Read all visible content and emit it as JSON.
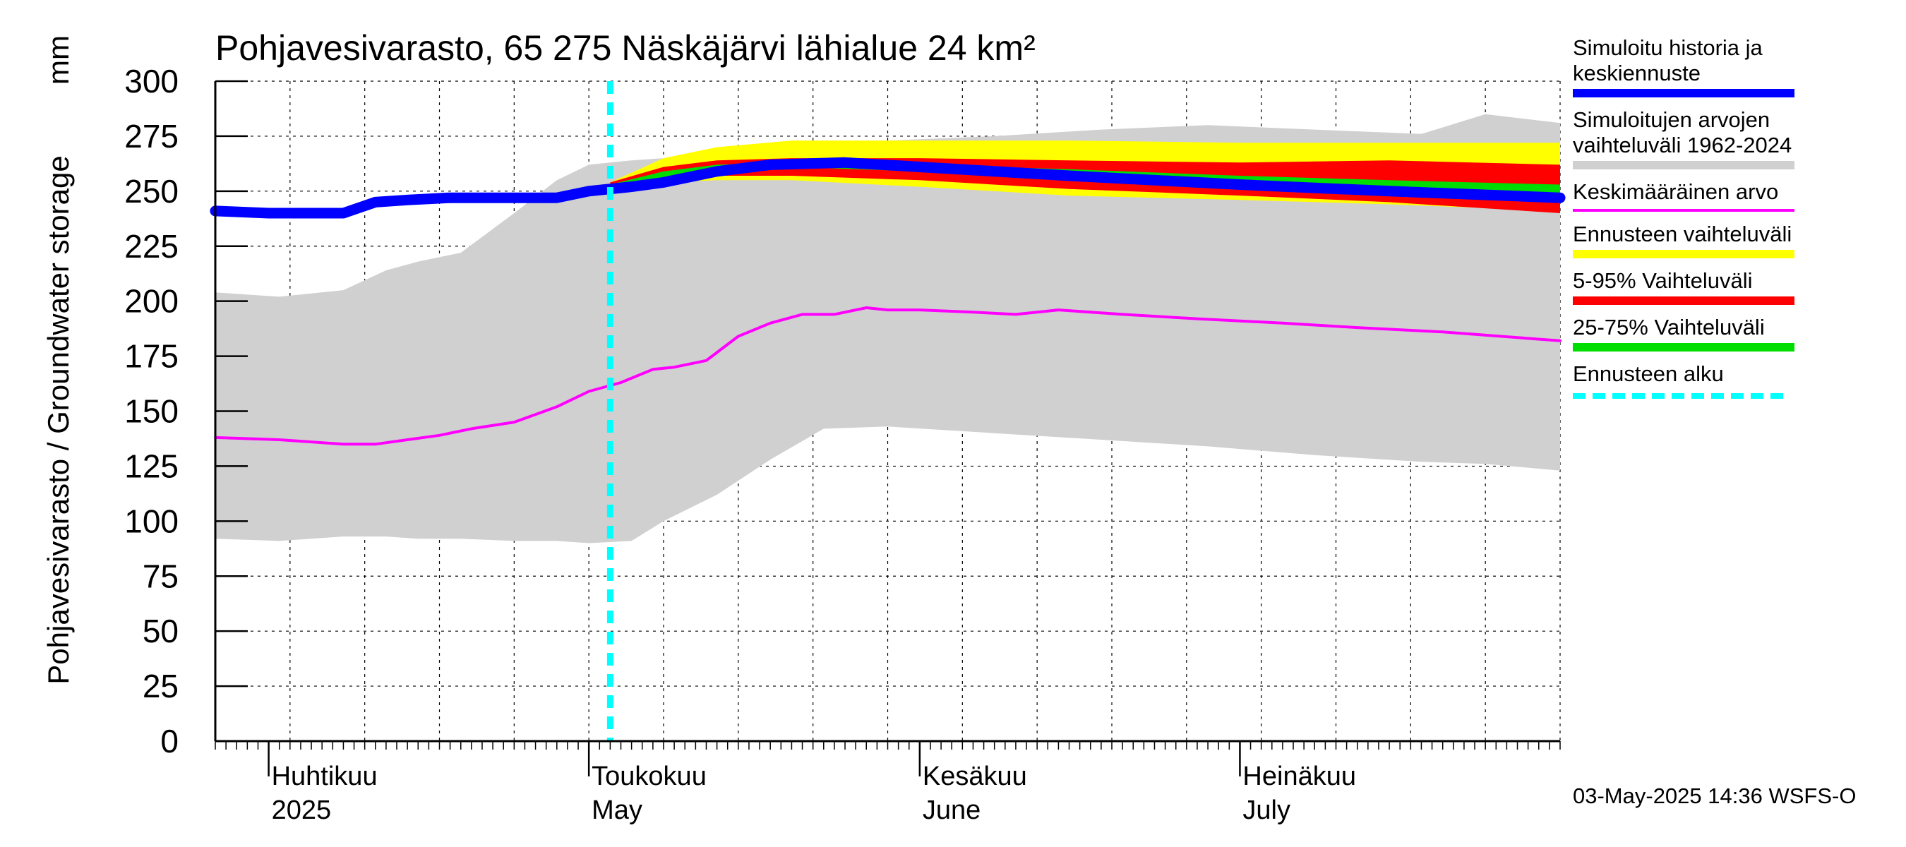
{
  "chart_data": {
    "type": "area",
    "title": "Pohjavesivarasto, 65 275 Näskäjärvi lähialue 24 km²",
    "ylabel": "Pohjavesivarasto / Groundwater storage",
    "yunit": "mm",
    "ylim": [
      0,
      300
    ],
    "yticks": [
      0,
      25,
      50,
      75,
      100,
      125,
      150,
      175,
      200,
      225,
      250,
      275,
      300
    ],
    "xlim": [
      "2025-03-27",
      "2025-07-31"
    ],
    "month_labels": [
      {
        "date": "2025-04-01",
        "line1": "Huhtikuu",
        "line2": "2025"
      },
      {
        "date": "2025-05-01",
        "line1": "Toukokuu",
        "line2": "May"
      },
      {
        "date": "2025-06-01",
        "line1": "Kesäkuu",
        "line2": "June"
      },
      {
        "date": "2025-07-01",
        "line1": "Heinäkuu",
        "line2": "July"
      }
    ],
    "grid": true,
    "legend_position": "right",
    "forecast_start": "2025-05-03",
    "series": [
      {
        "key": "range",
        "name": "Simuloitujen arvojen\nvaihteluväli 1962-2024",
        "color": "#d0d0d0",
        "kind": "band",
        "dates": [
          "2025-03-27",
          "2025-04-02",
          "2025-04-08",
          "2025-04-12",
          "2025-04-15",
          "2025-04-19",
          "2025-04-24",
          "2025-04-28",
          "2025-05-01",
          "2025-05-05",
          "2025-05-08",
          "2025-05-13",
          "2025-05-18",
          "2025-05-23",
          "2025-05-29",
          "2025-06-08",
          "2025-06-18",
          "2025-06-28",
          "2025-07-08",
          "2025-07-18",
          "2025-07-24",
          "2025-07-31"
        ],
        "low": [
          92,
          91,
          93,
          93,
          92,
          92,
          91,
          91,
          90,
          91,
          100,
          112,
          128,
          142,
          143,
          140,
          137,
          134,
          130,
          127,
          126,
          123
        ],
        "high": [
          204,
          202,
          205,
          214,
          218,
          222,
          240,
          255,
          262,
          264,
          265,
          268,
          270,
          272,
          273,
          275,
          278,
          280,
          278,
          276,
          285,
          281
        ]
      },
      {
        "key": "forecast",
        "name": "Ennusteen vaihteluväli",
        "color": "#ffff00",
        "kind": "band",
        "dates": [
          "2025-05-03",
          "2025-05-08",
          "2025-05-13",
          "2025-05-20",
          "2025-06-01",
          "2025-06-15",
          "2025-07-01",
          "2025-07-15",
          "2025-07-31"
        ],
        "low": [
          252,
          254,
          255,
          255,
          252,
          248,
          246,
          244,
          241
        ],
        "high": [
          254,
          265,
          270,
          273,
          273,
          273,
          272,
          272,
          272
        ]
      },
      {
        "key": "p5_95",
        "name": "5-95% Vaihteluväli",
        "color": "#ff0000",
        "kind": "band",
        "dates": [
          "2025-05-03",
          "2025-05-08",
          "2025-05-13",
          "2025-05-20",
          "2025-06-01",
          "2025-06-15",
          "2025-07-01",
          "2025-07-15",
          "2025-07-31"
        ],
        "low": [
          252,
          254,
          257,
          257,
          255,
          251,
          248,
          245,
          240
        ],
        "high": [
          254,
          261,
          264,
          265,
          265,
          264,
          263,
          264,
          262
        ]
      },
      {
        "key": "p25_75",
        "name": "25-75% Vaihteluväli",
        "color": "#00dd00",
        "kind": "band",
        "dates": [
          "2025-05-03",
          "2025-05-08",
          "2025-05-13",
          "2025-05-20",
          "2025-06-01",
          "2025-06-15",
          "2025-07-01",
          "2025-07-15",
          "2025-07-31"
        ],
        "low": [
          252,
          256,
          260,
          261,
          259,
          255,
          252,
          250,
          248
        ],
        "high": [
          253,
          259,
          262,
          263,
          262,
          260,
          257,
          255,
          253
        ]
      },
      {
        "key": "mean",
        "name": "Keskimääräinen arvo",
        "color": "#ff00ff",
        "kind": "line",
        "width": 4,
        "dates": [
          "2025-03-27",
          "2025-04-02",
          "2025-04-08",
          "2025-04-11",
          "2025-04-14",
          "2025-04-17",
          "2025-04-20",
          "2025-04-24",
          "2025-04-28",
          "2025-05-01",
          "2025-05-04",
          "2025-05-07",
          "2025-05-09",
          "2025-05-12",
          "2025-05-15",
          "2025-05-18",
          "2025-05-21",
          "2025-05-24",
          "2025-05-27",
          "2025-05-29",
          "2025-06-01",
          "2025-06-06",
          "2025-06-10",
          "2025-06-14",
          "2025-06-20",
          "2025-06-27",
          "2025-07-05",
          "2025-07-12",
          "2025-07-20",
          "2025-07-31"
        ],
        "values": [
          138,
          137,
          135,
          135,
          137,
          139,
          142,
          145,
          152,
          159,
          163,
          169,
          170,
          173,
          184,
          190,
          194,
          194,
          197,
          196,
          196,
          195,
          194,
          196,
          194,
          192,
          190,
          188,
          186,
          182
        ]
      },
      {
        "key": "history",
        "name": "Simuloitu historia ja\nkeskiennuste",
        "color": "#0000ff",
        "kind": "line",
        "width": 15,
        "dates": [
          "2025-03-27",
          "2025-04-01",
          "2025-04-08",
          "2025-04-11",
          "2025-04-14",
          "2025-04-18",
          "2025-04-24",
          "2025-04-28",
          "2025-05-01",
          "2025-05-05",
          "2025-05-08",
          "2025-05-13",
          "2025-05-18",
          "2025-05-25",
          "2025-06-01",
          "2025-06-15",
          "2025-07-01",
          "2025-07-15",
          "2025-07-31"
        ],
        "values": [
          241,
          240,
          240,
          245,
          246,
          247,
          247,
          247,
          250,
          252,
          254,
          259,
          262,
          263,
          261,
          257,
          253,
          250,
          247
        ]
      }
    ]
  },
  "legend": [
    {
      "key": "history",
      "label": "Simuloitu historia ja\nkeskiennuste",
      "color": "#0000ff",
      "style": "solid"
    },
    {
      "key": "range",
      "label": "Simuloitujen arvojen\nvaihteluväli 1962-2024",
      "color": "#d0d0d0",
      "style": "solid"
    },
    {
      "key": "mean",
      "label": "Keskimääräinen arvo",
      "color": "#ff00ff",
      "style": "thin"
    },
    {
      "key": "forecast",
      "label": "Ennusteen vaihteluväli",
      "color": "#ffff00",
      "style": "solid"
    },
    {
      "key": "p5_95",
      "label": "5-95% Vaihteluväli",
      "color": "#ff0000",
      "style": "solid"
    },
    {
      "key": "p25_75",
      "label": "25-75% Vaihteluväli",
      "color": "#00dd00",
      "style": "solid"
    },
    {
      "key": "start",
      "label": "Ennusteen alku",
      "color": "#00ffff",
      "style": "dashed"
    }
  ],
  "footer": "03-May-2025 14:36 WSFS-O"
}
